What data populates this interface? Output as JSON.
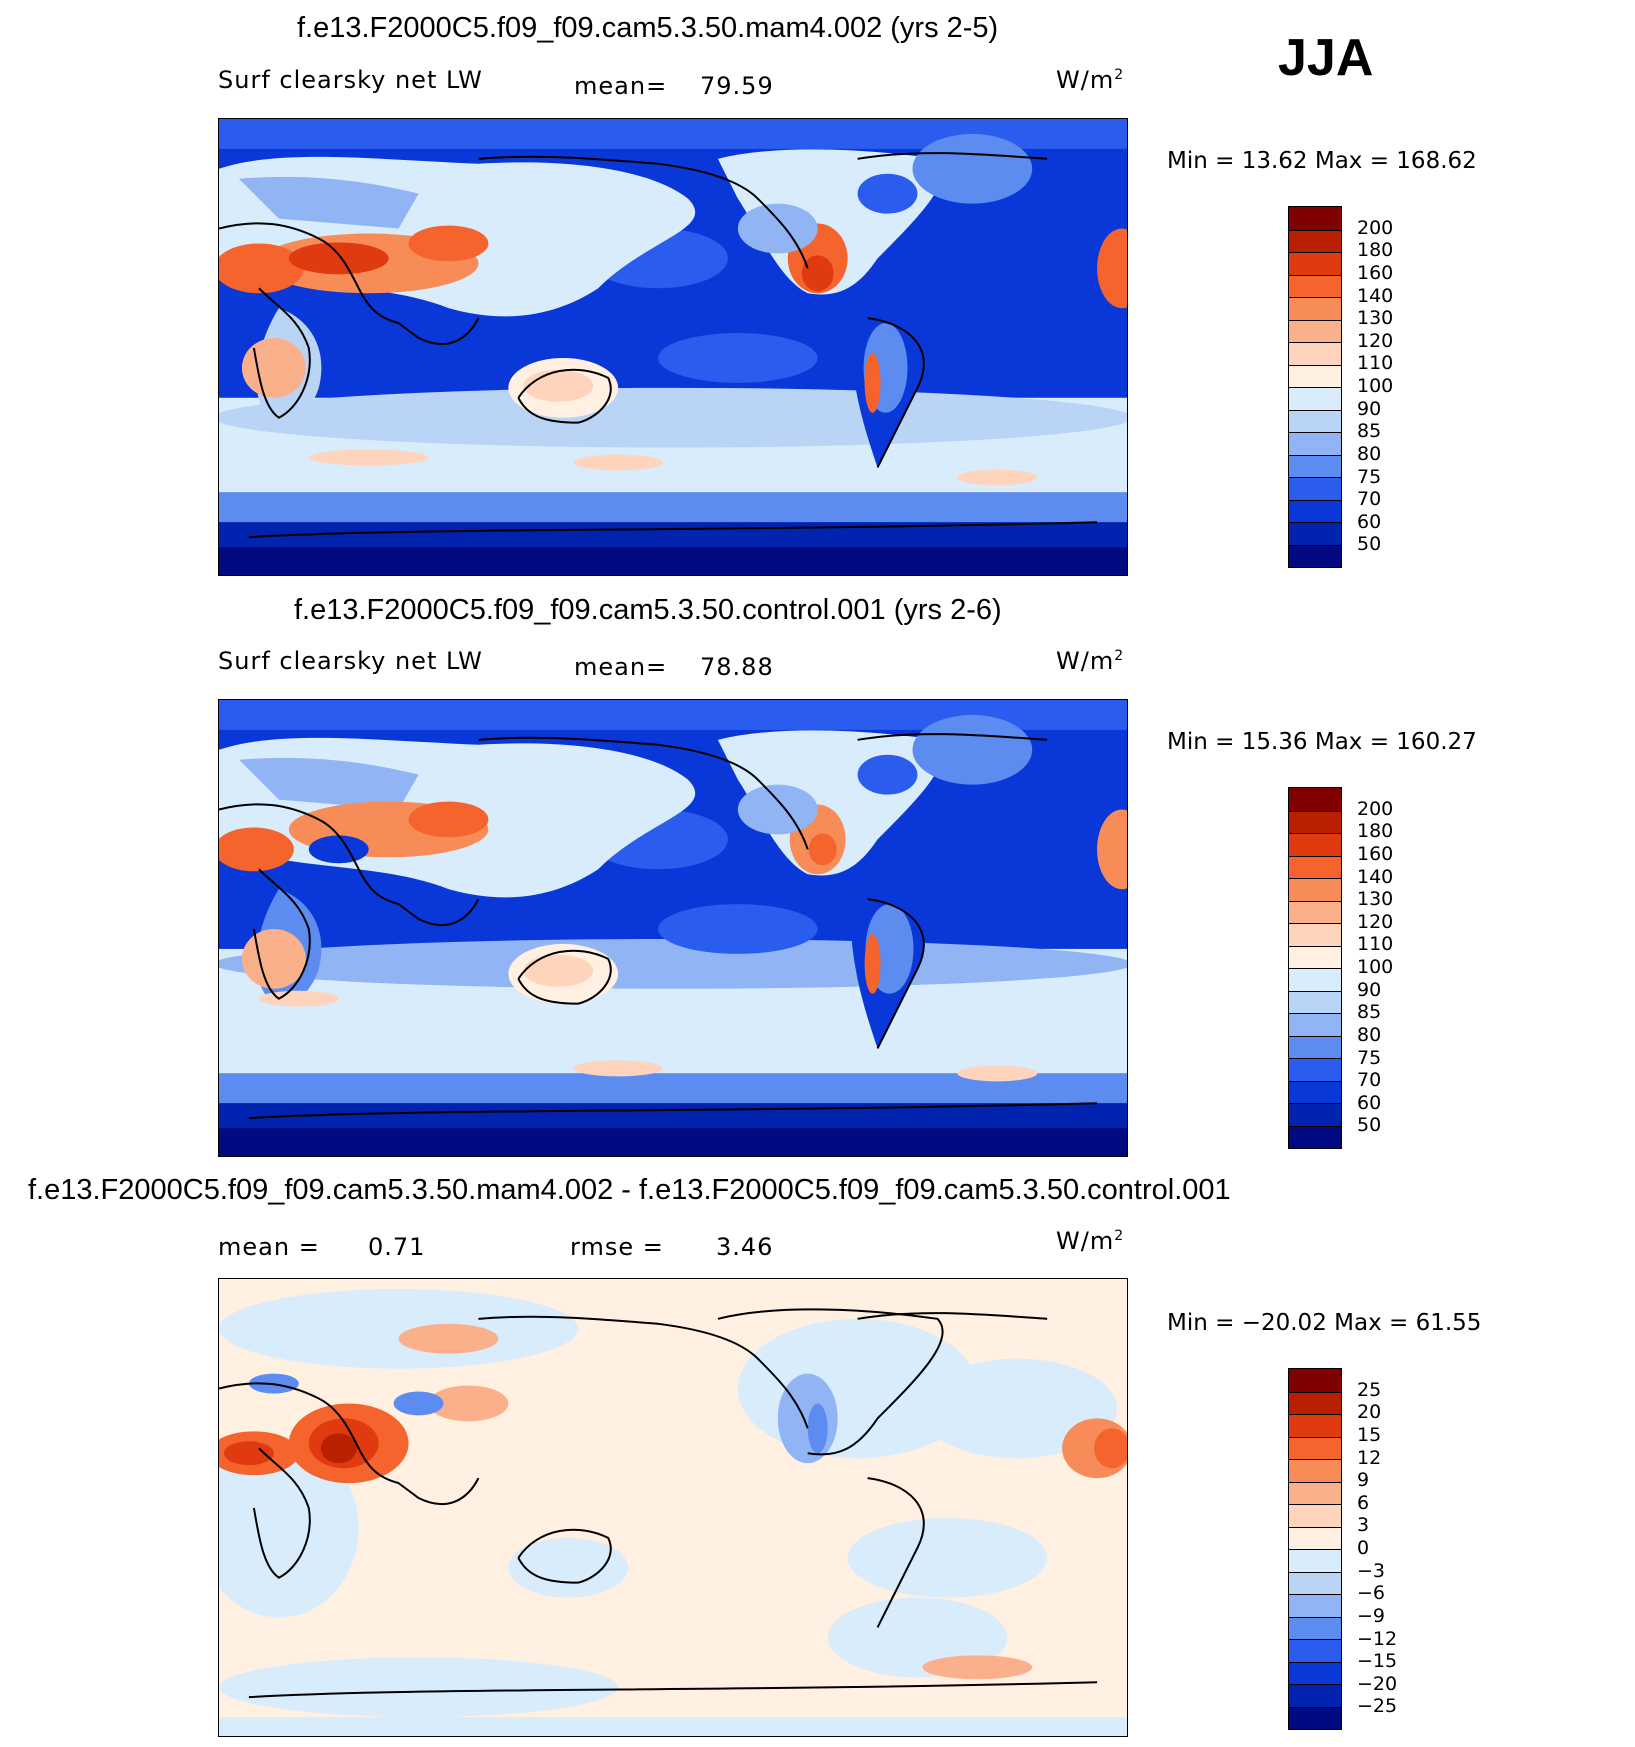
{
  "season": "JJA",
  "panels": [
    {
      "title": "f.e13.F2000C5.f09_f09.cam5.3.50.mam4.002 (yrs 2-5)",
      "variable": "Surf clearsky net LW",
      "stat1_label": "mean=",
      "stat1_value": "79.59",
      "units": "W/m",
      "units_sup": "2",
      "minmax": "Min =   13.62 Max =  168.62",
      "colorbar": {
        "labels": [
          "200",
          "180",
          "160",
          "140",
          "130",
          "120",
          "110",
          "100",
          "90",
          "85",
          "80",
          "75",
          "70",
          "60",
          "50"
        ],
        "colors": [
          "#800000",
          "#b82000",
          "#e03a10",
          "#f4642c",
          "#f88c58",
          "#fbb08c",
          "#fed4bc",
          "#fff0e2",
          "#d8ecfc",
          "#bad4f6",
          "#90b4f4",
          "#5c8cf0",
          "#2a5cee",
          "#0a38d8",
          "#0222b0",
          "#010a80"
        ]
      }
    },
    {
      "title": "f.e13.F2000C5.f09_f09.cam5.3.50.control.001 (yrs 2-6)",
      "variable": "Surf clearsky net LW",
      "stat1_label": "mean=",
      "stat1_value": "78.88",
      "units": "W/m",
      "units_sup": "2",
      "minmax": "Min =   15.36 Max =  160.27",
      "colorbar": {
        "labels": [
          "200",
          "180",
          "160",
          "140",
          "130",
          "120",
          "110",
          "100",
          "90",
          "85",
          "80",
          "75",
          "70",
          "60",
          "50"
        ],
        "colors": [
          "#800000",
          "#b82000",
          "#e03a10",
          "#f4642c",
          "#f88c58",
          "#fbb08c",
          "#fed4bc",
          "#fff0e2",
          "#d8ecfc",
          "#bad4f6",
          "#90b4f4",
          "#5c8cf0",
          "#2a5cee",
          "#0a38d8",
          "#0222b0",
          "#010a80"
        ]
      }
    },
    {
      "title": "f.e13.F2000C5.f09_f09.cam5.3.50.mam4.002 - f.e13.F2000C5.f09_f09.cam5.3.50.control.001",
      "stat1_label": "mean =",
      "stat1_value": "0.71",
      "stat2_label": "rmse =",
      "stat2_value": "3.46",
      "units": "W/m",
      "units_sup": "2",
      "minmax": "Min = −20.02 Max =   61.55",
      "colorbar": {
        "labels": [
          "25",
          "20",
          "15",
          "12",
          "9",
          "6",
          "3",
          "0",
          "−3",
          "−6",
          "−9",
          "−12",
          "−15",
          "−20",
          "−25"
        ],
        "colors": [
          "#800000",
          "#b82000",
          "#e03a10",
          "#f4642c",
          "#f88c58",
          "#fbb08c",
          "#fed4bc",
          "#fff0e2",
          "#d8ecfc",
          "#bad4f6",
          "#90b4f4",
          "#5c8cf0",
          "#2a5cee",
          "#0a38d8",
          "#0222b0",
          "#010a80"
        ]
      }
    }
  ]
}
